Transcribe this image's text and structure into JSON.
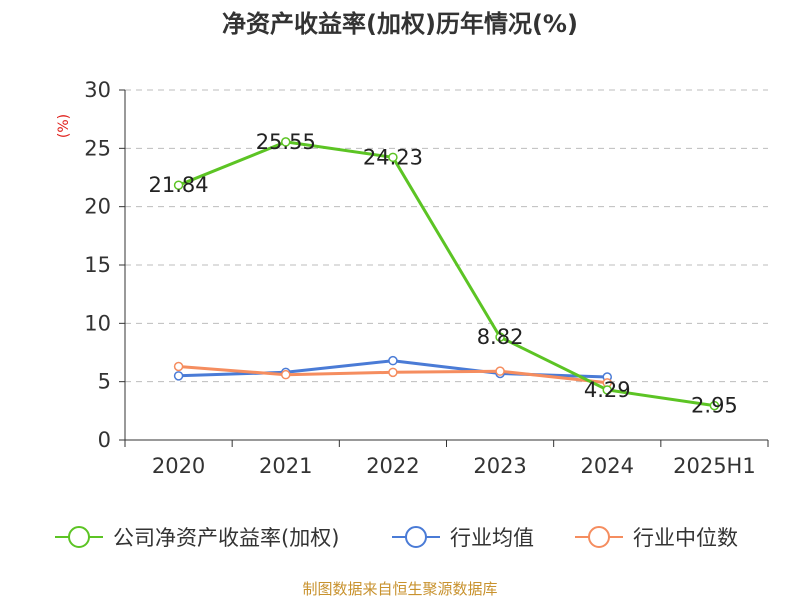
{
  "chart_data": {
    "type": "line",
    "title": "净资产收益率(加权)历年情况(%)",
    "ylabel": "(%)",
    "xlabel": "",
    "categories": [
      "2020",
      "2021",
      "2022",
      "2023",
      "2024",
      "2025H1"
    ],
    "ylim": [
      0,
      30
    ],
    "yticks": [
      0,
      5,
      10,
      15,
      20,
      25,
      30
    ],
    "grid": "horizontal-dashed",
    "legend_position": "bottom",
    "series": [
      {
        "name": "公司净资产收益率(加权)",
        "color": "#5cc424",
        "values": [
          21.84,
          25.55,
          24.23,
          8.82,
          4.29,
          2.95
        ],
        "labels": [
          "21.84",
          "25.55",
          "24.23",
          "8.82",
          "4.29",
          "2.95"
        ]
      },
      {
        "name": "行业均值",
        "color": "#4a7bd6",
        "values": [
          5.5,
          5.8,
          6.8,
          5.7,
          5.4,
          null
        ]
      },
      {
        "name": "行业中位数",
        "color": "#f58d5f",
        "values": [
          6.3,
          5.6,
          5.8,
          5.9,
          4.9,
          null
        ]
      }
    ]
  },
  "source_text": "制图数据来自恒生聚源数据库"
}
